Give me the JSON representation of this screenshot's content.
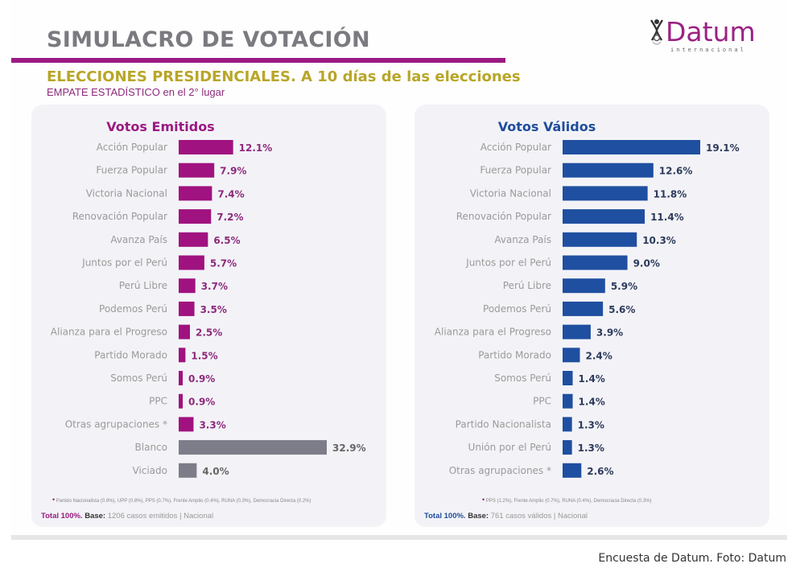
{
  "header": {
    "title": "SIMULACRO DE VOTACIÓN",
    "subtitle": "ELECCIONES PRESIDENCIALES.  A 10 días de las elecciones",
    "note_bold": "EMPATE ESTADÍSTICO",
    "note_rest": " en el 2° lugar",
    "logo_text": "Datum",
    "logo_sub": "internacional"
  },
  "colors": {
    "emitidos": "#a0127f",
    "validos": "#1f4fa0",
    "neutral": "#7d7d8a",
    "title_bar": "#9b1a82",
    "subtitle": "#b8a628"
  },
  "chart_data": [
    {
      "type": "bar",
      "orientation": "horizontal",
      "title": "Votos Emitidos",
      "categories": [
        "Acción Popular",
        "Fuerza Popular",
        "Victoria Nacional",
        "Renovación Popular",
        "Avanza País",
        "Juntos por el Perú",
        "Perú Libre",
        "Podemos Perú",
        "Alianza para el Progreso",
        "Partido Morado",
        "Somos Perú",
        "PPC",
        "Otras agrupaciones *",
        "Blanco",
        "Viciado"
      ],
      "values": [
        12.1,
        7.9,
        7.4,
        7.2,
        6.5,
        5.7,
        3.7,
        3.5,
        2.5,
        1.5,
        0.9,
        0.9,
        3.3,
        32.9,
        4.0
      ],
      "labels": [
        "12.1%",
        "7.9%",
        "7.4%",
        "7.2%",
        "6.5%",
        "5.7%",
        "3.7%",
        "3.5%",
        "2.5%",
        "1.5%",
        "0.9%",
        "0.9%",
        "3.3%",
        "32.9%",
        "4.0%"
      ],
      "neutral_categories": [
        "Blanco",
        "Viciado"
      ],
      "xlim": [
        0,
        35
      ],
      "unit": "%",
      "footnote": "Partido Nacionalista (0.9%), UPP (0.8%), PPS (0.7%), Frente Amplio (0.4%), RUNA (0.3%), Democracia Directa (0.2%)",
      "base_total": "Total 100%.",
      "base_label": "Base:",
      "base_text": " 1206 casos emitidos | Nacional"
    },
    {
      "type": "bar",
      "orientation": "horizontal",
      "title": "Votos Válidos",
      "categories": [
        "Acción Popular",
        "Fuerza Popular",
        "Victoria Nacional",
        "Renovación Popular",
        "Avanza País",
        "Juntos por el Perú",
        "Perú Libre",
        "Podemos Perú",
        "Alianza para el Progreso",
        "Partido Morado",
        "Somos Perú",
        "PPC",
        "Partido Nacionalista",
        "Unión por el Perú",
        "Otras agrupaciones *"
      ],
      "values": [
        19.1,
        12.6,
        11.8,
        11.4,
        10.3,
        9.0,
        5.9,
        5.6,
        3.9,
        2.4,
        1.4,
        1.4,
        1.3,
        1.3,
        2.6
      ],
      "labels": [
        "19.1%",
        "12.6%",
        "11.8%",
        "11.4%",
        "10.3%",
        "9.0%",
        "5.9%",
        "5.6%",
        "3.9%",
        "2.4%",
        "1.4%",
        "1.4%",
        "1.3%",
        "1.3%",
        "2.6%"
      ],
      "neutral_categories": [],
      "xlim": [
        0,
        22
      ],
      "unit": "%",
      "footnote": "PPS (1.2%), Frente Amplio (0.7%), RUNA (0.4%), Democracia Directa (0.3%)",
      "base_total": "Total 100%.",
      "base_label": "Base:",
      "base_text": " 761 casos válidos | Nacional"
    }
  ],
  "caption": "Encuesta de Datum. Foto: Datum"
}
